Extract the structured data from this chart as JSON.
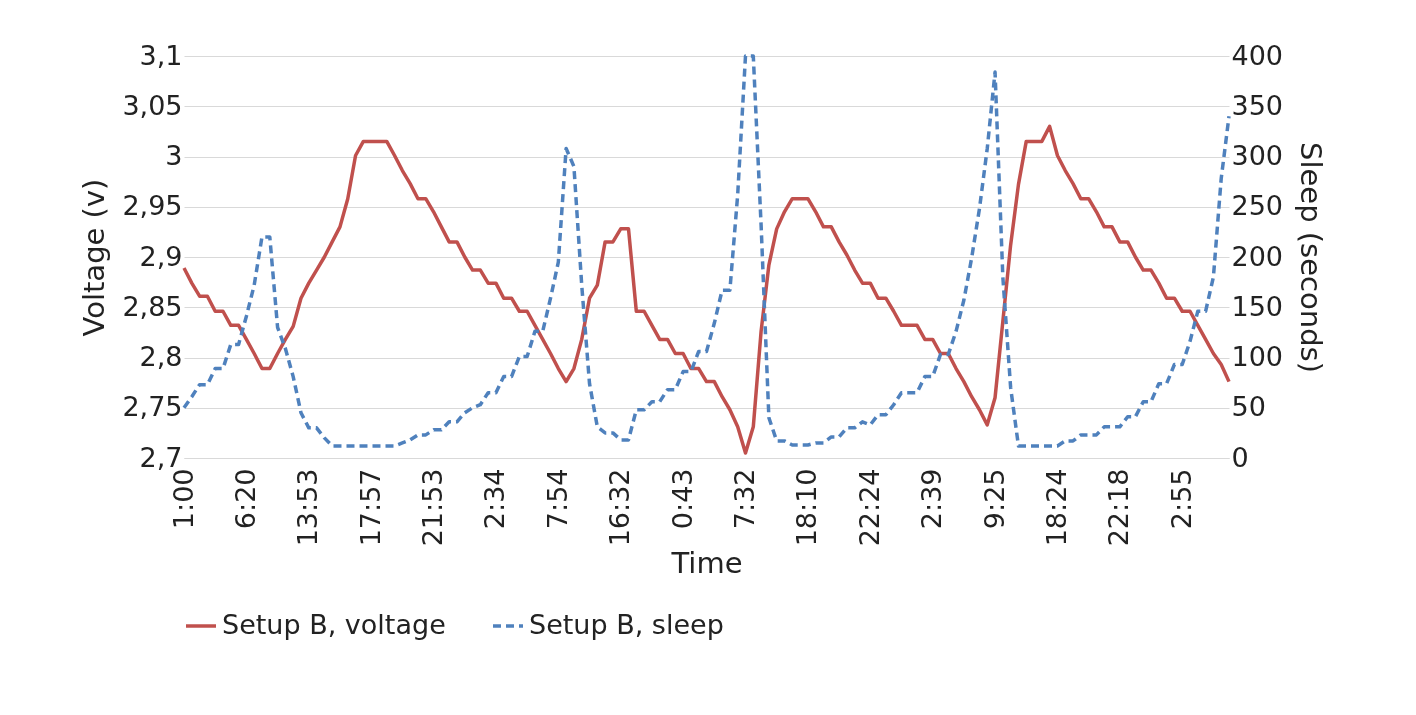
{
  "chart_data": {
    "type": "line",
    "xlabel": "Time",
    "ylabel": "Voltage (v)",
    "y2label": "Sleep (seconds)",
    "categories": [
      "1:00",
      null,
      null,
      null,
      null,
      null,
      null,
      null,
      "6:20",
      null,
      null,
      null,
      null,
      null,
      null,
      null,
      "13:53",
      null,
      null,
      null,
      null,
      null,
      null,
      null,
      "17:57",
      null,
      null,
      null,
      null,
      null,
      null,
      null,
      "21:53",
      null,
      null,
      null,
      null,
      null,
      null,
      null,
      "2:34",
      null,
      null,
      null,
      null,
      null,
      null,
      null,
      "7:54",
      null,
      null,
      null,
      null,
      null,
      null,
      null,
      "16:32",
      null,
      null,
      null,
      null,
      null,
      null,
      null,
      "0:43",
      null,
      null,
      null,
      null,
      null,
      null,
      null,
      "7:32",
      null,
      null,
      null,
      null,
      null,
      null,
      null,
      "18:10",
      null,
      null,
      null,
      null,
      null,
      null,
      null,
      "22:24",
      null,
      null,
      null,
      null,
      null,
      null,
      null,
      "2:39",
      null,
      null,
      null,
      null,
      null,
      null,
      null,
      "9:25",
      null,
      null,
      null,
      null,
      null,
      null,
      null,
      "18:24",
      null,
      null,
      null,
      null,
      null,
      null,
      null,
      "22:18",
      null,
      null,
      null,
      null,
      null,
      null,
      null,
      "2:55",
      null,
      null,
      null,
      null,
      null,
      null
    ],
    "series": [
      {
        "name": "Setup B, voltage",
        "color": "#c0504d",
        "line_style": "solid",
        "values": [
          2.889,
          2.874,
          2.861,
          2.861,
          2.846,
          2.846,
          2.832,
          2.832,
          2.818,
          2.804,
          2.789,
          2.789,
          2.804,
          2.818,
          2.831,
          2.859,
          2.874,
          2.887,
          2.9,
          2.915,
          2.93,
          2.958,
          3.001,
          3.015,
          3.015,
          3.015,
          3.015,
          3.001,
          2.986,
          2.973,
          2.958,
          2.958,
          2.945,
          2.93,
          2.915,
          2.915,
          2.9,
          2.887,
          2.887,
          2.874,
          2.874,
          2.859,
          2.859,
          2.846,
          2.846,
          2.832,
          2.818,
          2.804,
          2.789,
          2.776,
          2.789,
          2.818,
          2.859,
          2.872,
          2.915,
          2.915,
          2.928,
          2.928,
          2.846,
          2.846,
          2.832,
          2.818,
          2.818,
          2.804,
          2.804,
          2.789,
          2.789,
          2.776,
          2.776,
          2.761,
          2.748,
          2.731,
          2.705,
          2.731,
          2.826,
          2.892,
          2.928,
          2.945,
          2.958,
          2.958,
          2.958,
          2.945,
          2.93,
          2.93,
          2.915,
          2.902,
          2.887,
          2.874,
          2.874,
          2.859,
          2.859,
          2.846,
          2.832,
          2.832,
          2.832,
          2.818,
          2.818,
          2.804,
          2.804,
          2.789,
          2.776,
          2.761,
          2.748,
          2.733,
          2.76,
          2.836,
          2.912,
          2.972,
          3.015,
          3.015,
          3.015,
          3.03,
          3.001,
          2.986,
          2.973,
          2.958,
          2.958,
          2.945,
          2.93,
          2.93,
          2.915,
          2.915,
          2.9,
          2.887,
          2.887,
          2.874,
          2.859,
          2.859,
          2.846,
          2.846,
          2.832,
          2.818,
          2.804,
          2.793,
          2.776
        ]
      },
      {
        "name": "Setup B, sleep",
        "color": "#4f81bd",
        "line_style": "dashed",
        "axis": "y2",
        "values": [
          50,
          61,
          73,
          73,
          89,
          89,
          113,
          113,
          141,
          172,
          220,
          220,
          130,
          109,
          81,
          45,
          30,
          30,
          20,
          12,
          12,
          12,
          12,
          12,
          12,
          12,
          12,
          12,
          15,
          18,
          23,
          23,
          28,
          28,
          36,
          36,
          45,
          50,
          53,
          65,
          65,
          81,
          81,
          101,
          101,
          126,
          126,
          159,
          195,
          308,
          290,
          172,
          74,
          31,
          25,
          25,
          18,
          18,
          48,
          48,
          56,
          56,
          68,
          68,
          86,
          86,
          106,
          106,
          134,
          167,
          167,
          262,
          400,
          400,
          232,
          40,
          17,
          17,
          13,
          13,
          13,
          15,
          15,
          21,
          21,
          30,
          30,
          36,
          33,
          43,
          43,
          53,
          65,
          65,
          65,
          81,
          81,
          103,
          103,
          126,
          157,
          199,
          248,
          308,
          384,
          180,
          70,
          12,
          12,
          12,
          12,
          12,
          12,
          17,
          17,
          23,
          23,
          23,
          31,
          31,
          31,
          41,
          41,
          56,
          56,
          74,
          74,
          93,
          93,
          116,
          146,
          146,
          180,
          278,
          340
        ]
      }
    ],
    "ylim": [
      2.7,
      3.1
    ],
    "yticks": [
      {
        "value": 2.7,
        "label": "2,7"
      },
      {
        "value": 2.75,
        "label": "2,75"
      },
      {
        "value": 2.8,
        "label": "2,8"
      },
      {
        "value": 2.85,
        "label": "2,85"
      },
      {
        "value": 2.9,
        "label": "2,9"
      },
      {
        "value": 2.95,
        "label": "2,95"
      },
      {
        "value": 3.0,
        "label": "3"
      },
      {
        "value": 3.05,
        "label": "3,05"
      },
      {
        "value": 3.1,
        "label": "3,1"
      }
    ],
    "y2lim": [
      0,
      400
    ],
    "y2ticks": [
      0,
      50,
      100,
      150,
      200,
      250,
      300,
      350,
      400
    ],
    "grid": "y",
    "legend": "bottom",
    "marker": "none"
  }
}
